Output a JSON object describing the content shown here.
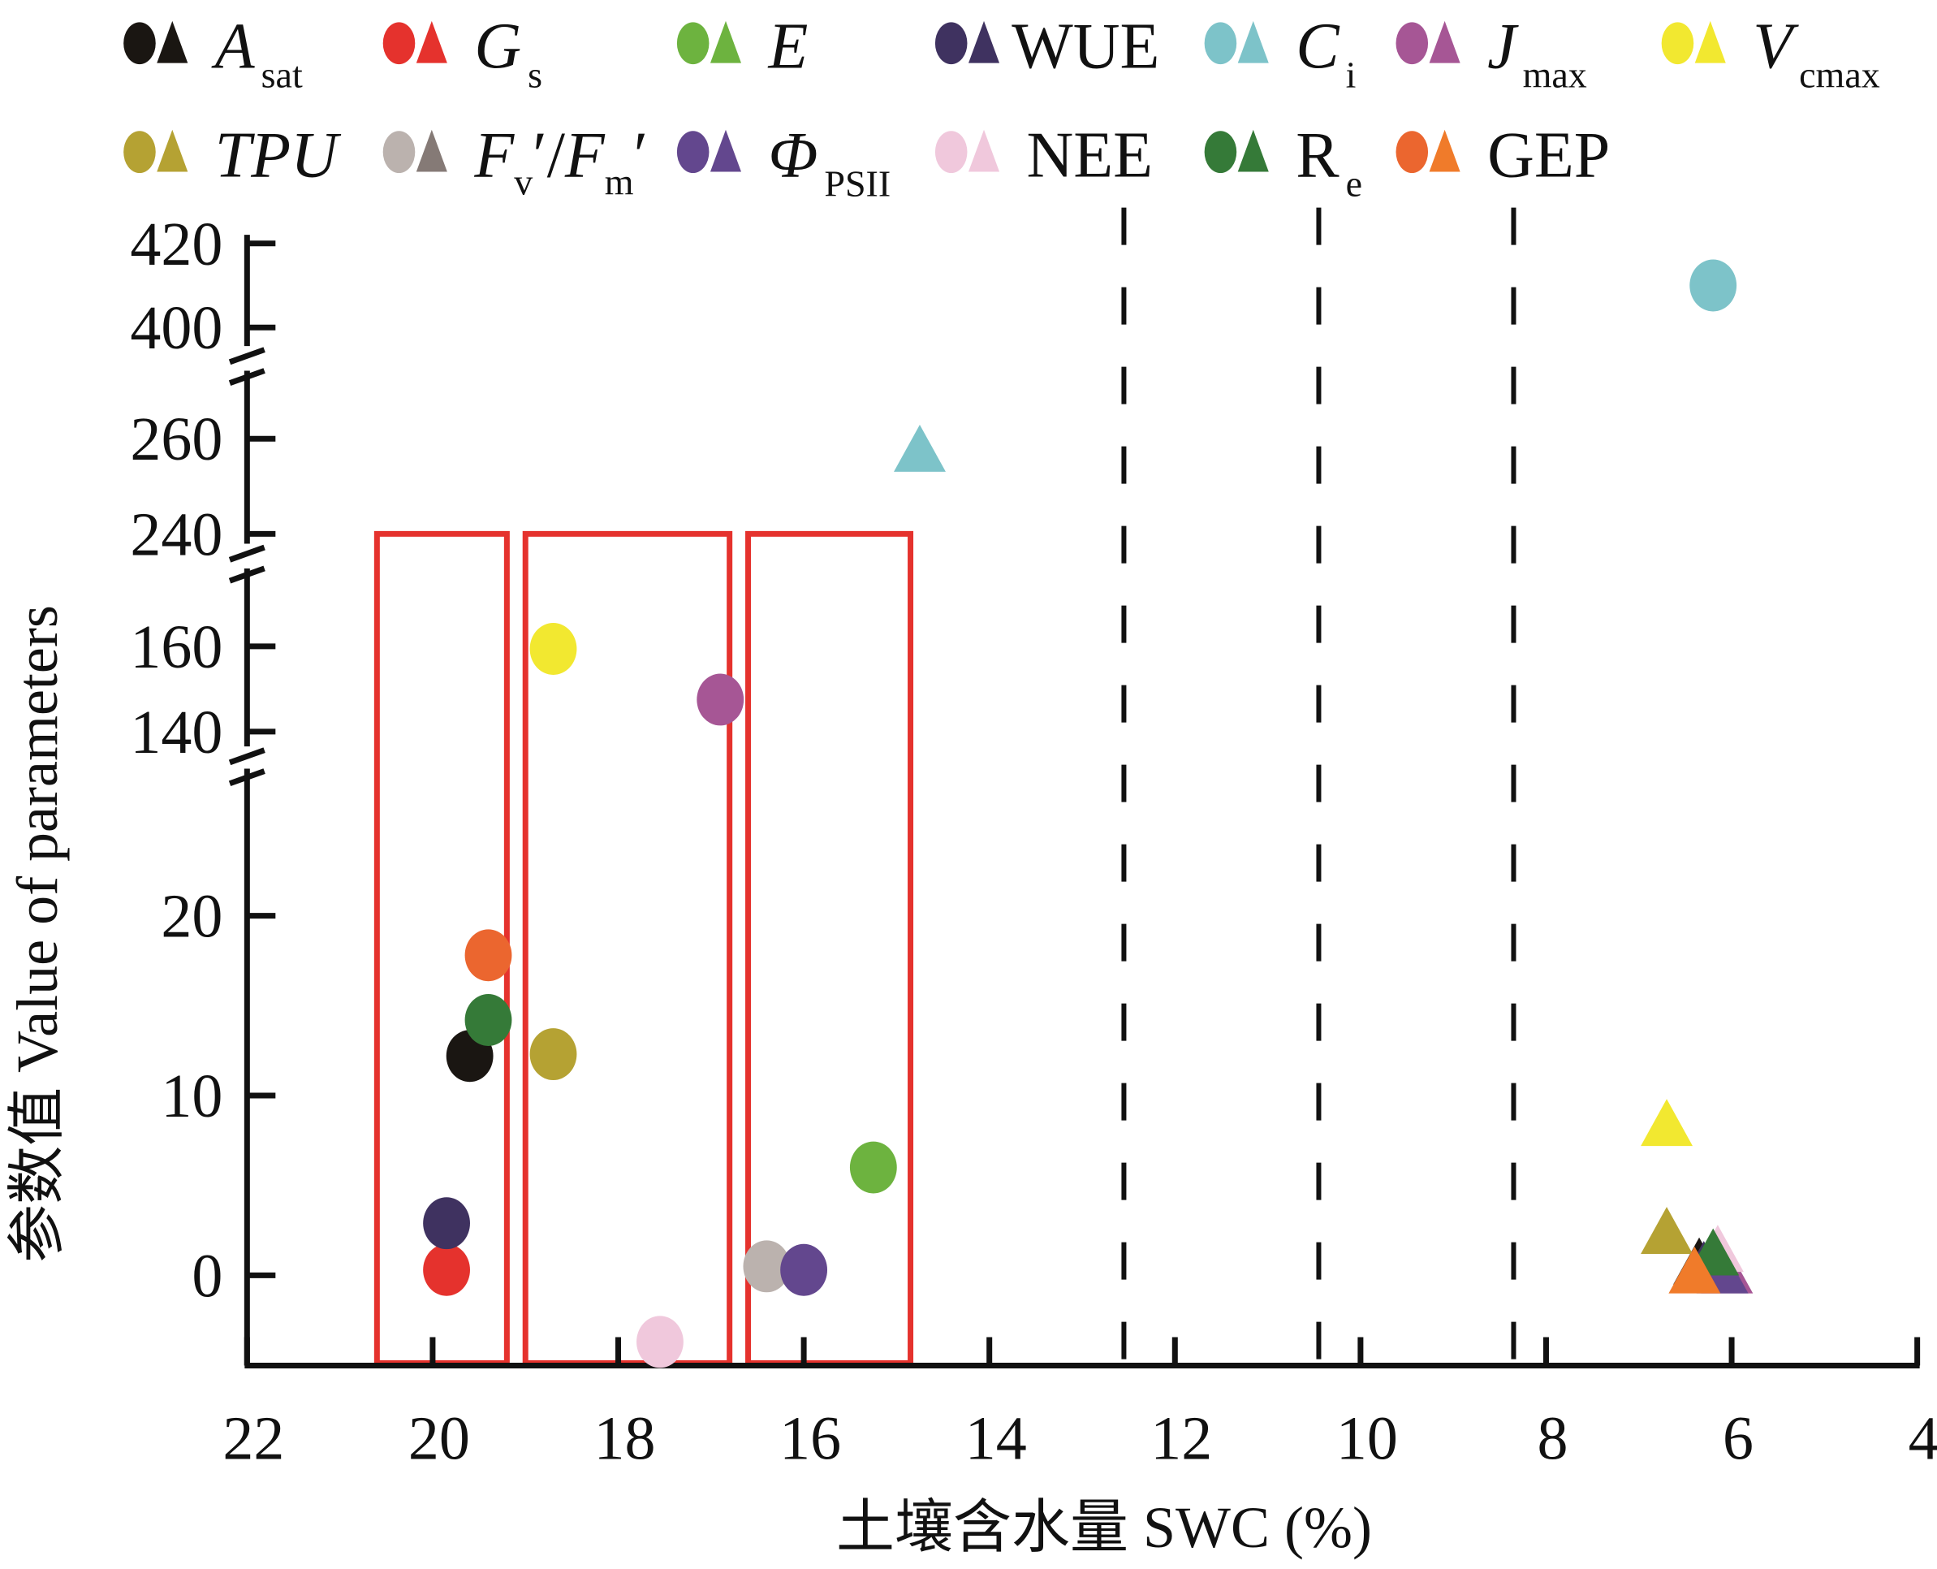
{
  "chart_data": {
    "type": "scatter",
    "title": "",
    "xlabel": "土壤含水量 SWC (%)",
    "ylabel": "参数值 Value of parameters",
    "x_axis": {
      "range": [
        22,
        4
      ],
      "reversed": true,
      "ticks": [
        22,
        20,
        18,
        16,
        14,
        12,
        10,
        8,
        6,
        4
      ],
      "tick_labels": [
        "22",
        "20",
        "18",
        "16",
        "14",
        "12",
        "10",
        "8",
        "6",
        "4"
      ]
    },
    "y_axis": {
      "broken": true,
      "segments": [
        {
          "range": [
            -5,
            25
          ],
          "ticks": [
            0,
            10,
            20
          ]
        },
        {
          "range": [
            130,
            170
          ],
          "ticks": [
            140,
            160
          ]
        },
        {
          "range": [
            230,
            270
          ],
          "ticks": [
            240,
            260
          ]
        },
        {
          "range": [
            390,
            425
          ],
          "ticks": [
            400,
            420
          ]
        }
      ],
      "tick_labels": [
        "0",
        "10",
        "20",
        "140",
        "160",
        "240",
        "260",
        "400",
        "420"
      ]
    },
    "grid": false,
    "legend_position": "top",
    "series": [
      {
        "key": "Asat",
        "name": "A",
        "sub": "sat",
        "italic": true,
        "circle_color": "#1a1612",
        "triangle_color": "#1a1612",
        "circle": {
          "x": 19.6,
          "y": 12.2
        },
        "triangle": {
          "x": 6.35,
          "y": 0.8
        }
      },
      {
        "key": "Gs",
        "name": "G",
        "sub": "s",
        "italic": true,
        "circle_color": "#e5322d",
        "triangle_color": "#e5322d",
        "circle": {
          "x": 19.85,
          "y": 0.3
        },
        "triangle": null
      },
      {
        "key": "E",
        "name": "E",
        "sub": "",
        "italic": true,
        "circle_color": "#6db33f",
        "triangle_color": "#6db33f",
        "circle": {
          "x": 15.25,
          "y": 6.0
        },
        "triangle": null
      },
      {
        "key": "WUE",
        "name": "WUE",
        "sub": "",
        "italic": false,
        "circle_color": "#3f3260",
        "triangle_color": "#3f3260",
        "circle": {
          "x": 19.85,
          "y": 2.9
        },
        "triangle": {
          "x": 6.3,
          "y": 0.6
        }
      },
      {
        "key": "Ci",
        "name": "C",
        "sub": "i",
        "italic": true,
        "circle_color": "#7dc3c9",
        "triangle_color": "#7dc3c9",
        "circle": {
          "x": 6.2,
          "y": 410
        },
        "triangle": {
          "x": 14.75,
          "y": 258
        }
      },
      {
        "key": "Jmax",
        "name": "J",
        "sub": "max",
        "italic": true,
        "circle_color": "#a65695",
        "triangle_color": "#a65695",
        "circle": {
          "x": 16.9,
          "y": 147.5
        },
        "triangle": {
          "x": 6.05,
          "y": 0.3
        }
      },
      {
        "key": "Vcmax",
        "name": "V",
        "sub": "cmax",
        "italic": true,
        "circle_color": "#f2e830",
        "triangle_color": "#f2e830",
        "circle": {
          "x": 18.7,
          "y": 159.4
        },
        "triangle": {
          "x": 6.7,
          "y": 8.5
        }
      },
      {
        "key": "TPU",
        "name": "TPU",
        "sub": "",
        "italic": true,
        "circle_color": "#b5a233",
        "triangle_color": "#b5a233",
        "circle": {
          "x": 18.7,
          "y": 12.3
        },
        "triangle": {
          "x": 6.7,
          "y": 2.5
        }
      },
      {
        "key": "FvFm",
        "name": "F′/F′",
        "sub": "v / m",
        "italic": true,
        "circle_color": "#bbb2ae",
        "triangle_color": "#857a76",
        "circle": {
          "x": 16.4,
          "y": 0.5
        },
        "triangle": null
      },
      {
        "key": "PhiPSII",
        "name": "Φ",
        "sub": "PSII",
        "italic": true,
        "circle_color": "#63478e",
        "triangle_color": "#63478e",
        "circle": {
          "x": 16.0,
          "y": 0.3
        },
        "triangle": {
          "x": 6.1,
          "y": 0.3
        }
      },
      {
        "key": "NEE",
        "name": "NEE",
        "sub": "",
        "italic": false,
        "circle_color": "#f0c8dc",
        "triangle_color": "#f0c8dc",
        "circle": {
          "x": 17.55,
          "y": -3.7
        },
        "triangle": {
          "x": 6.15,
          "y": 1.5
        }
      },
      {
        "key": "Re",
        "name": "R",
        "sub": "e",
        "italic": false,
        "circle_color": "#357a38",
        "triangle_color": "#357a38",
        "circle": {
          "x": 19.4,
          "y": 14.2
        },
        "triangle": {
          "x": 6.2,
          "y": 1.3
        }
      },
      {
        "key": "GEP",
        "name": "GEP",
        "sub": "",
        "italic": false,
        "circle_color": "#eb662f",
        "triangle_color": "#f07b2a",
        "circle": {
          "x": 19.4,
          "y": 17.8
        },
        "triangle": {
          "x": 6.4,
          "y": 0.3
        }
      }
    ],
    "annotations": {
      "red_boxes": [
        {
          "x_from": 20.6,
          "x_to": 19.2,
          "y_top": 240,
          "color": "#e5322d"
        },
        {
          "x_from": 19.0,
          "x_to": 16.8,
          "y_top": 240,
          "color": "#e5322d"
        },
        {
          "x_from": 16.6,
          "x_to": 14.85,
          "y_top": 240,
          "color": "#e5322d"
        }
      ],
      "dashed_lines_x": [
        12.55,
        10.45,
        8.35
      ]
    }
  },
  "legend": {
    "rows": [
      [
        "Asat",
        "Gs",
        "E",
        "WUE",
        "Ci",
        "Jmax",
        "Vcmax"
      ],
      [
        "TPU",
        "FvFm",
        "PhiPSII",
        "NEE",
        "Re",
        "GEP"
      ]
    ]
  }
}
